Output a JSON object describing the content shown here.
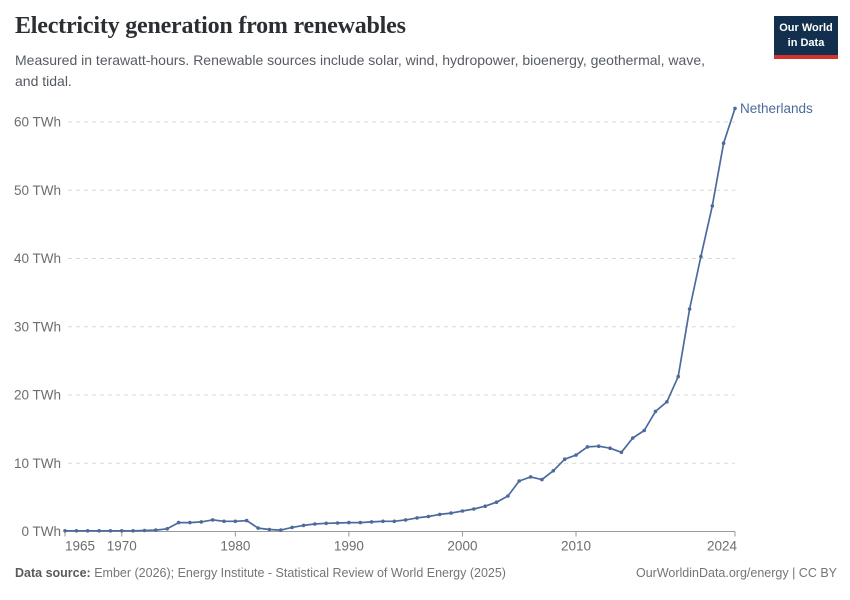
{
  "header": {
    "title": "Electricity generation from renewables",
    "subtitle": "Measured in terawatt-hours. Renewable sources include solar, wind, hydropower, bioenergy, geothermal, wave, and tidal.",
    "logo": {
      "line1": "Our World",
      "line2": "in Data",
      "bg_color": "#12304e",
      "accent_color": "#d0342c"
    }
  },
  "chart_data": {
    "type": "line",
    "title": "Electricity generation from renewables",
    "xlabel": "",
    "ylabel": "TWh",
    "xlim": [
      1965,
      2024
    ],
    "ylim": [
      0,
      60
    ],
    "grid": true,
    "legend_position": "end-of-line",
    "yticks": [
      {
        "value": 0,
        "label": "0 TWh"
      },
      {
        "value": 10,
        "label": "10 TWh"
      },
      {
        "value": 20,
        "label": "20 TWh"
      },
      {
        "value": 30,
        "label": "30 TWh"
      },
      {
        "value": 40,
        "label": "40 TWh"
      },
      {
        "value": 50,
        "label": "50 TWh"
      },
      {
        "value": 60,
        "label": "60 TWh"
      }
    ],
    "xticks": [
      {
        "value": 1965,
        "label": "1965"
      },
      {
        "value": 1970,
        "label": "1970"
      },
      {
        "value": 1980,
        "label": "1980"
      },
      {
        "value": 1990,
        "label": "1990"
      },
      {
        "value": 2000,
        "label": "2000"
      },
      {
        "value": 2010,
        "label": "2010"
      },
      {
        "value": 2024,
        "label": "2024"
      }
    ],
    "series": [
      {
        "name": "Netherlands",
        "color": "#4c6a9c",
        "x": [
          1965,
          1966,
          1967,
          1968,
          1969,
          1970,
          1971,
          1972,
          1973,
          1974,
          1975,
          1976,
          1977,
          1978,
          1979,
          1980,
          1981,
          1982,
          1983,
          1984,
          1985,
          1986,
          1987,
          1988,
          1989,
          1990,
          1991,
          1992,
          1993,
          1994,
          1995,
          1996,
          1997,
          1998,
          1999,
          2000,
          2001,
          2002,
          2003,
          2004,
          2005,
          2006,
          2007,
          2008,
          2009,
          2010,
          2011,
          2012,
          2013,
          2014,
          2015,
          2016,
          2017,
          2018,
          2019,
          2020,
          2021,
          2022,
          2023,
          2024
        ],
        "values": [
          0.1,
          0.1,
          0.1,
          0.1,
          0.1,
          0.1,
          0.1,
          0.15,
          0.2,
          0.4,
          1.3,
          1.3,
          1.4,
          1.7,
          1.5,
          1.5,
          1.6,
          0.5,
          0.3,
          0.2,
          0.6,
          0.9,
          1.1,
          1.2,
          1.25,
          1.3,
          1.3,
          1.4,
          1.5,
          1.5,
          1.7,
          2.0,
          2.2,
          2.5,
          2.7,
          3.0,
          3.3,
          3.7,
          4.3,
          5.2,
          7.4,
          8.0,
          7.6,
          8.9,
          10.6,
          11.2,
          12.4,
          12.5,
          12.2,
          11.6,
          13.7,
          14.8,
          17.6,
          19.0,
          22.7,
          32.6,
          40.3,
          47.7,
          56.9,
          62.0
        ]
      }
    ],
    "annotations": [
      {
        "text": "Netherlands",
        "color": "#4c6a9c",
        "position": "line-end"
      }
    ]
  },
  "footer": {
    "source_label": "Data source:",
    "source_text": "Ember (2026); Energy Institute - Statistical Review of World Energy (2025)",
    "right_text": "OurWorldinData.org/energy | CC BY"
  },
  "colors": {
    "line": "#4c6a9c",
    "gridline": "#d8d8d8",
    "axis": "#9a9a9a",
    "tick_label": "#6d6d6d",
    "title": "#2b2e33",
    "subtitle": "#565b62"
  }
}
